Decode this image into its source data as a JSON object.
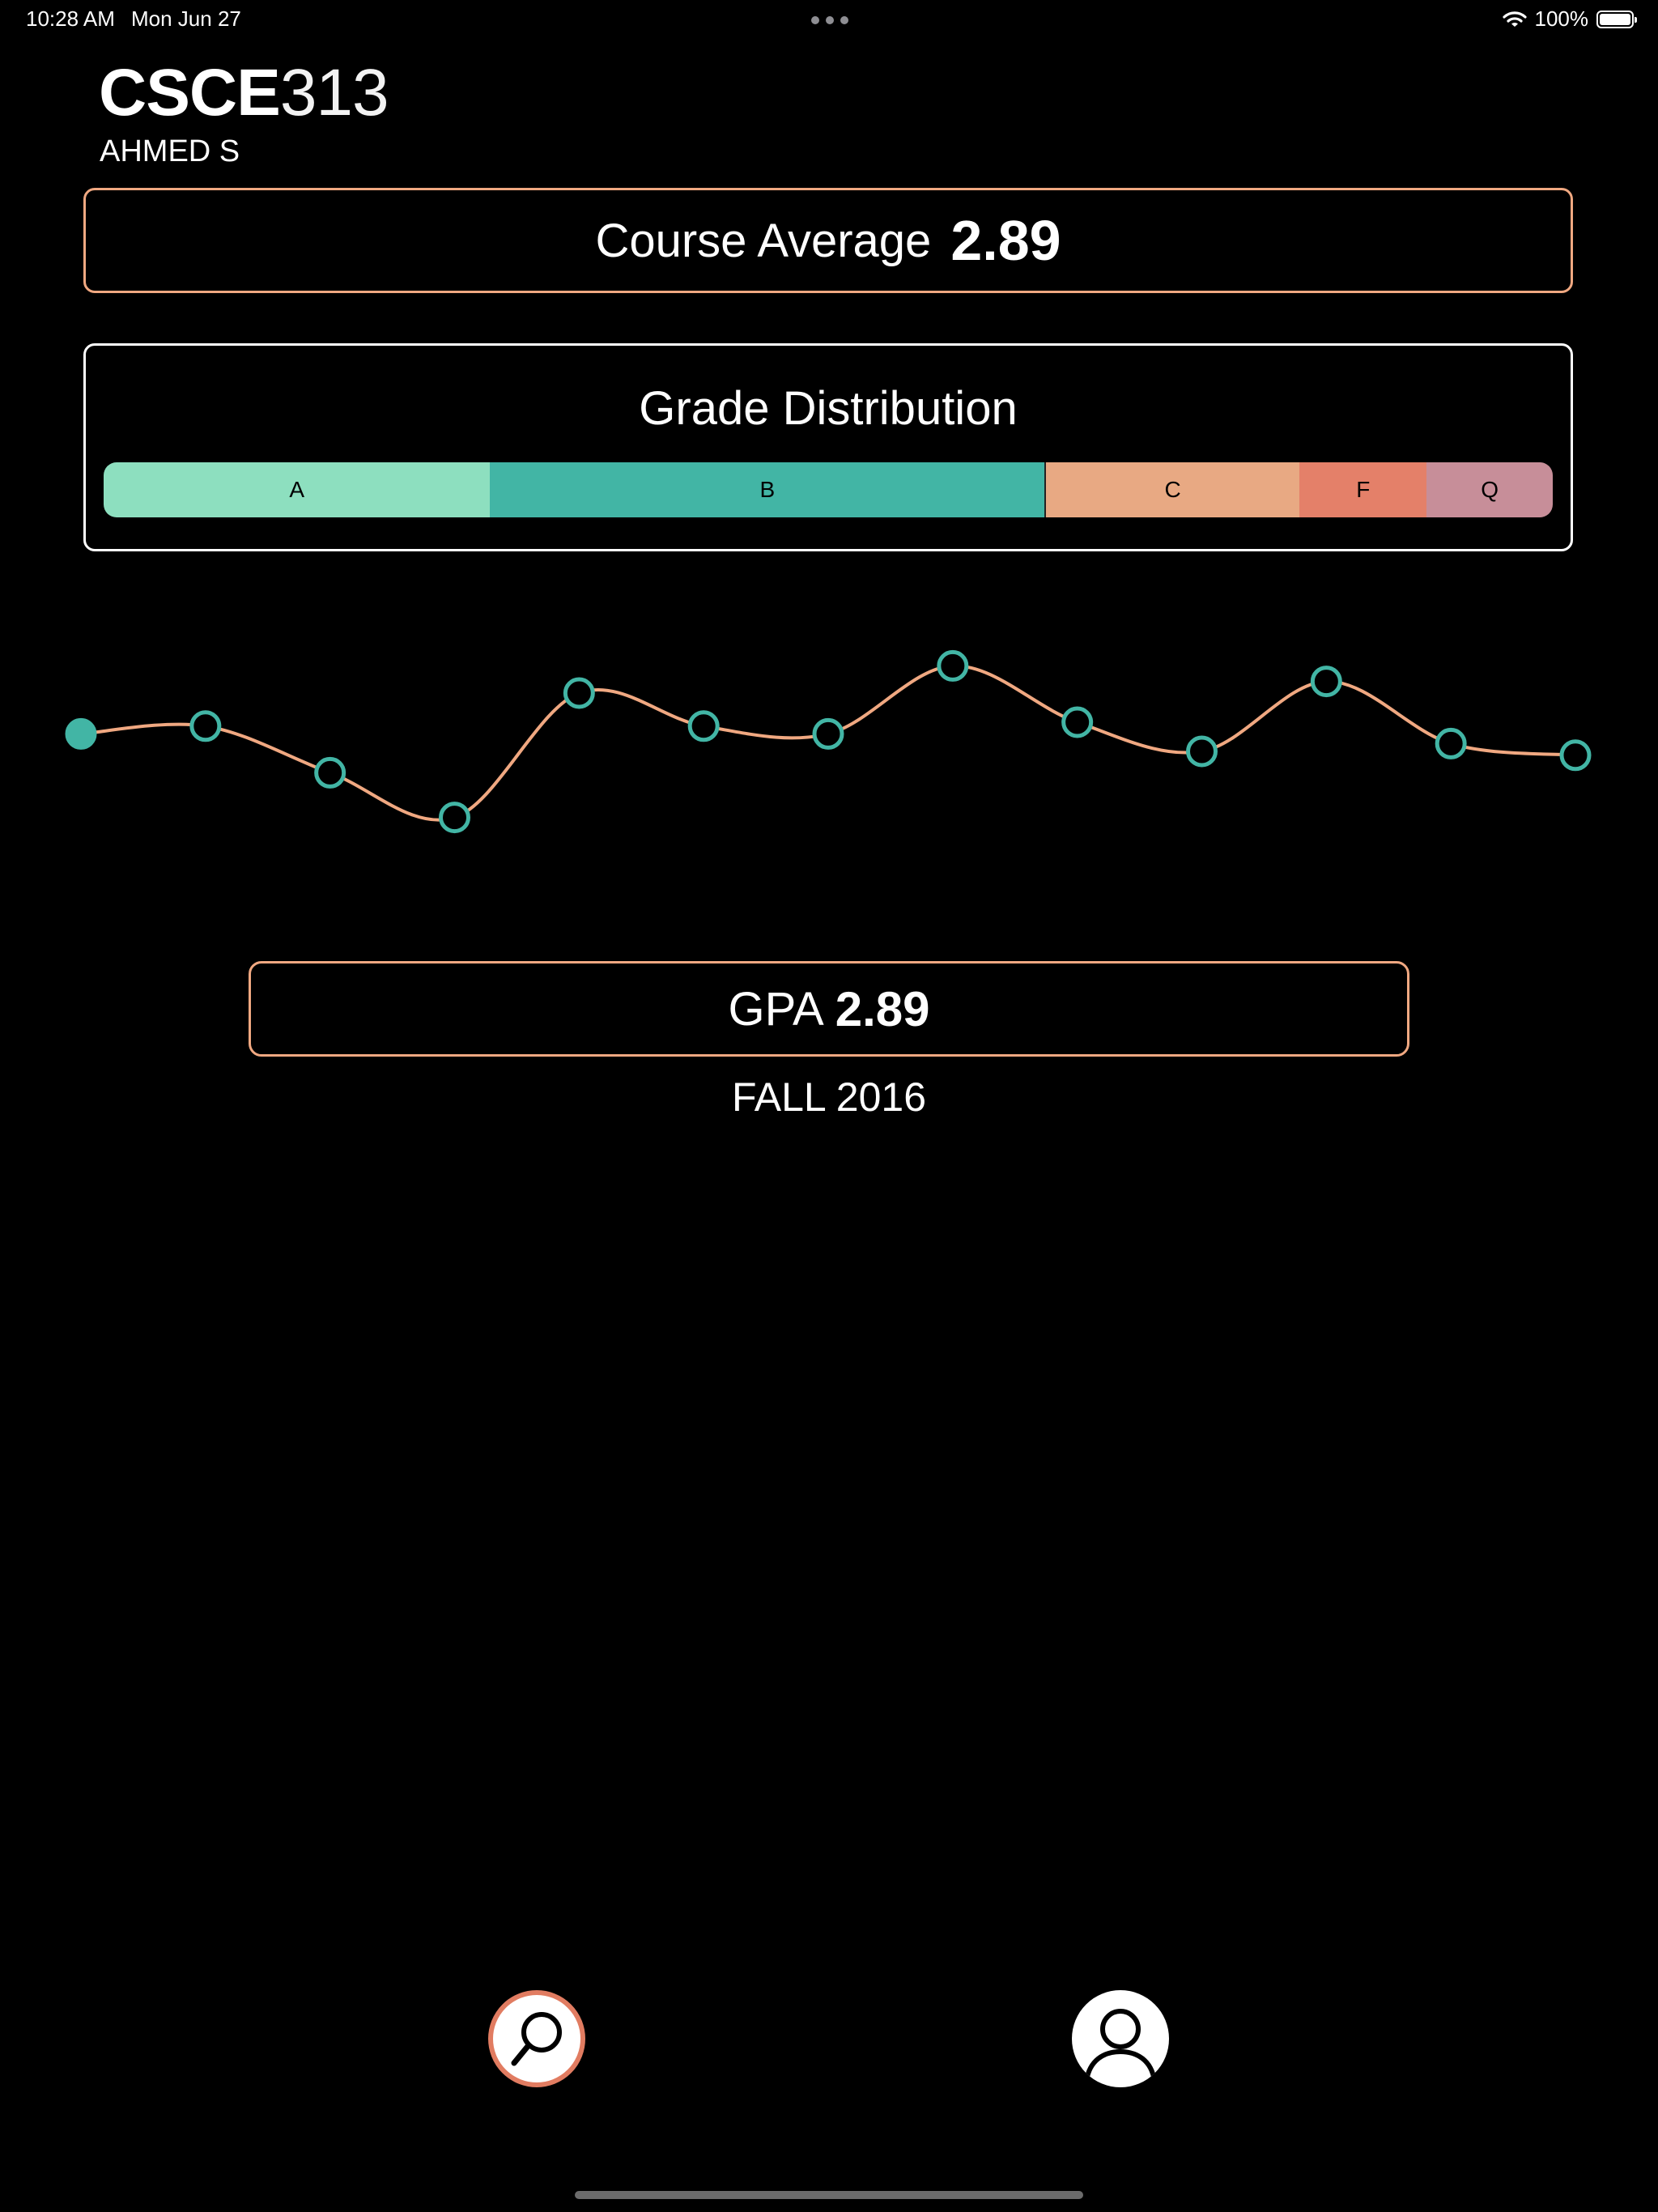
{
  "status_bar": {
    "time": "10:28 AM",
    "date": "Mon Jun 27",
    "battery": "100%",
    "battery_level": 1.0
  },
  "course": {
    "dept": "CSCE",
    "number": "313",
    "instructor": "AHMED S"
  },
  "course_average": {
    "label": "Course Average",
    "value": "2.89"
  },
  "grade_distribution": {
    "title": "Grade Distribution",
    "segments": [
      {
        "label": "A",
        "fraction": 0.267,
        "color": "#8ddfbf"
      },
      {
        "label": "B",
        "fraction": 0.383,
        "color": "#42b5a5"
      },
      {
        "label": "C",
        "fraction": 0.175,
        "color": "#e8a983"
      },
      {
        "label": "F",
        "fraction": 0.088,
        "color": "#e48069"
      },
      {
        "label": "Q",
        "fraction": 0.087,
        "color": "#c78e99"
      }
    ]
  },
  "chart_data": {
    "type": "line",
    "title": "",
    "xlabel": "",
    "ylabel": "",
    "ylim": [
      2.0,
      3.5
    ],
    "grid": false,
    "selected_index": 0,
    "line_color": "#f0a881",
    "point_color": "#42b5a5",
    "values": [
      2.89,
      2.93,
      2.69,
      2.46,
      3.1,
      2.93,
      2.89,
      3.24,
      2.95,
      2.8,
      3.16,
      2.84,
      2.78
    ]
  },
  "selected_term": {
    "gpa_label": "GPA",
    "gpa_value": "2.89",
    "semester": "FALL 2016"
  },
  "colors": {
    "accent": "#f0a881",
    "teal": "#42b5a5",
    "search_ring": "#e17c61"
  },
  "nav": {
    "search_icon": "search-icon",
    "profile_icon": "person-icon"
  }
}
